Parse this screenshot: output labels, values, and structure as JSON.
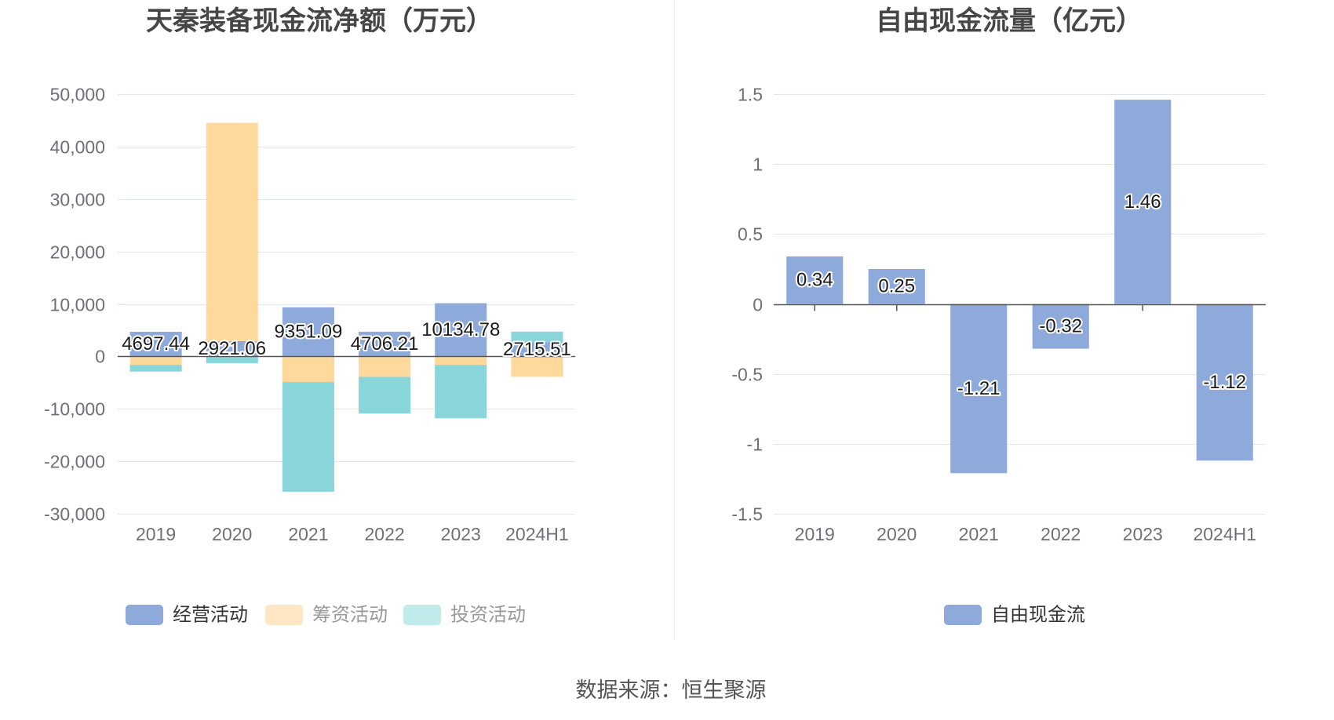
{
  "source": "数据来源：恒生聚源",
  "chart_data": [
    {
      "type": "bar",
      "stacked": true,
      "title": "天秦装备现金流净额（万元）",
      "categories": [
        "2019",
        "2020",
        "2021",
        "2022",
        "2023",
        "2024H1"
      ],
      "yticks": [
        "50,000",
        "40,000",
        "30,000",
        "20,000",
        "10,000",
        "0",
        "-10,000",
        "-20,000",
        "-30,000"
      ],
      "ylim": [
        -30000,
        50000
      ],
      "grid": true,
      "legend_position": "bottom",
      "series": [
        {
          "name": "经营活动",
          "values": [
            4697.44,
            2921.06,
            9351.09,
            4706.21,
            10134.78,
            2715.51
          ],
          "show_labels": true,
          "color": "#8eaadb",
          "legend_color": "#8eaadb",
          "legend_text_color": "#333333"
        },
        {
          "name": "筹资活动",
          "values": [
            -1600,
            41600,
            -4900,
            -3900,
            -1600,
            -3900
          ],
          "show_labels": false,
          "color": "#ffd99b",
          "legend_color": "#ffe7c4",
          "legend_text_color": "#999999"
        },
        {
          "name": "投资活动",
          "values": [
            -1300,
            -1300,
            -20900,
            -7000,
            -10200,
            2000
          ],
          "show_labels": false,
          "color": "#88d6d9",
          "legend_color": "#c0ebeb",
          "legend_text_color": "#999999"
        }
      ]
    },
    {
      "type": "bar",
      "stacked": false,
      "title": "自由现金流量（亿元）",
      "categories": [
        "2019",
        "2020",
        "2021",
        "2022",
        "2023",
        "2024H1"
      ],
      "yticks": [
        "1.5",
        "1",
        "0.5",
        "0",
        "-0.5",
        "-1",
        "-1.5"
      ],
      "ylim": [
        -1.5,
        1.5
      ],
      "grid": true,
      "legend_position": "bottom",
      "series": [
        {
          "name": "自由现金流",
          "values": [
            0.34,
            0.25,
            -1.21,
            -0.32,
            1.46,
            -1.12
          ],
          "show_labels": true,
          "color": "#8eaadb",
          "legend_color": "#8eaadb",
          "legend_text_color": "#333333"
        }
      ]
    }
  ]
}
